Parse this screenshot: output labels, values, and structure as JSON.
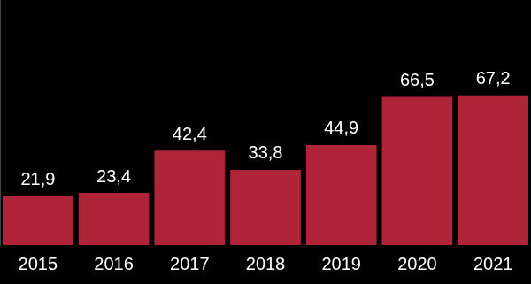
{
  "chart_data": {
    "type": "bar",
    "categories": [
      "2015",
      "2016",
      "2017",
      "2018",
      "2019",
      "2020",
      "2021"
    ],
    "values": [
      21.9,
      23.4,
      42.4,
      33.8,
      44.9,
      66.5,
      67.2
    ],
    "value_labels": [
      "21,9",
      "23,4",
      "42,4",
      "33,8",
      "44,9",
      "66,5",
      "67,2"
    ],
    "color": "#b0243a",
    "ylim": [
      0,
      110
    ],
    "yticks": [
      0
    ],
    "grid": false,
    "data_labels": true,
    "tick_labels": "x"
  }
}
